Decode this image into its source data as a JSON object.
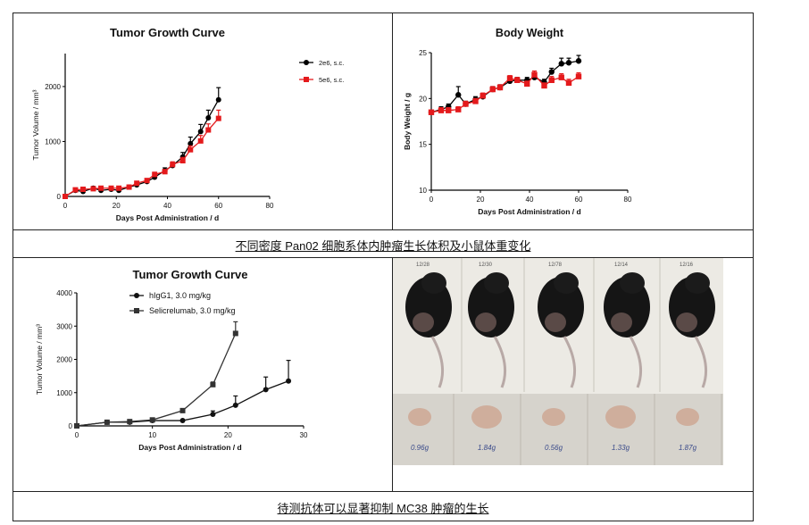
{
  "captions": {
    "top": "不同密度 Pan02 细胞系体内肿瘤生长体积及小鼠体重变化",
    "bottom": "待测抗体可以显著抑制 MC38 肿瘤的生长"
  },
  "chart_data": [
    {
      "type": "line",
      "title": "Tumor Growth Curve",
      "xlabel": "Days Post Administration / d",
      "ylabel": "Tumor Volume / mm³",
      "xlim": [
        0,
        80
      ],
      "ylim": [
        0,
        2600
      ],
      "xticks": [
        0,
        20,
        40,
        60,
        80
      ],
      "yticks": [
        0,
        1000,
        2000
      ],
      "legend": "top-right",
      "series": [
        {
          "name": "2e6, s.c.",
          "color": "#000000",
          "marker": "circle",
          "x": [
            0,
            4,
            7,
            11,
            14,
            18,
            21,
            25,
            28,
            32,
            35,
            39,
            42,
            46,
            49,
            53,
            56,
            60
          ],
          "y": [
            0,
            110,
            90,
            150,
            110,
            130,
            110,
            170,
            210,
            270,
            350,
            470,
            560,
            720,
            960,
            1180,
            1430,
            1760
          ],
          "err": [
            0,
            20,
            20,
            30,
            20,
            20,
            30,
            30,
            30,
            40,
            40,
            50,
            60,
            80,
            120,
            130,
            140,
            220
          ]
        },
        {
          "name": "5e6, s.c.",
          "color": "#e41a1c",
          "marker": "square",
          "x": [
            0,
            4,
            7,
            11,
            14,
            18,
            21,
            25,
            28,
            32,
            35,
            39,
            42,
            46,
            49,
            53,
            56,
            60
          ],
          "y": [
            0,
            120,
            130,
            140,
            150,
            150,
            150,
            170,
            240,
            290,
            400,
            450,
            580,
            650,
            850,
            1010,
            1210,
            1420
          ],
          "err": [
            0,
            20,
            20,
            20,
            20,
            20,
            20,
            30,
            30,
            30,
            40,
            40,
            50,
            60,
            70,
            100,
            110,
            150
          ]
        }
      ]
    },
    {
      "type": "line",
      "title": "Body Weight",
      "xlabel": "Days Post Administration / d",
      "ylabel": "Body Weight / g",
      "xlim": [
        0,
        80
      ],
      "ylim": [
        10,
        25
      ],
      "xticks": [
        0,
        20,
        40,
        60,
        80
      ],
      "yticks": [
        10,
        15,
        20,
        25
      ],
      "series": [
        {
          "color": "#000000",
          "marker": "circle",
          "x": [
            0,
            4,
            7,
            11,
            14,
            18,
            21,
            25,
            28,
            32,
            35,
            39,
            42,
            46,
            49,
            53,
            56,
            60
          ],
          "y": [
            18.5,
            18.8,
            19.1,
            20.4,
            19.4,
            19.9,
            20.2,
            21.0,
            21.2,
            21.9,
            22.0,
            22.0,
            22.3,
            21.8,
            22.9,
            23.8,
            23.9,
            24.1
          ],
          "err": [
            0.2,
            0.3,
            0.3,
            0.9,
            0.3,
            0.3,
            0.3,
            0.3,
            0.3,
            0.3,
            0.3,
            0.3,
            0.3,
            0.3,
            0.4,
            0.6,
            0.5,
            0.6
          ]
        },
        {
          "color": "#e41a1c",
          "marker": "square",
          "x": [
            0,
            4,
            7,
            11,
            14,
            18,
            21,
            25,
            28,
            32,
            35,
            39,
            42,
            46,
            49,
            53,
            56,
            60
          ],
          "y": [
            18.5,
            18.7,
            18.7,
            18.8,
            19.4,
            19.7,
            20.3,
            21.0,
            21.2,
            22.2,
            22.0,
            21.6,
            22.6,
            21.4,
            22.0,
            22.3,
            21.7,
            22.4
          ],
          "err": [
            0.2,
            0.3,
            0.3,
            0.3,
            0.3,
            0.3,
            0.3,
            0.3,
            0.3,
            0.3,
            0.3,
            0.3,
            0.4,
            0.3,
            0.4,
            0.4,
            0.4,
            0.4
          ]
        }
      ]
    },
    {
      "type": "line",
      "title": "Tumor Growth Curve",
      "xlabel": "Days Post Administration / d",
      "ylabel": "Tumor Volume / mm³",
      "xlim": [
        0,
        30
      ],
      "ylim": [
        0,
        4000
      ],
      "xticks": [
        0,
        10,
        20,
        30
      ],
      "yticks": [
        0,
        1000,
        2000,
        3000,
        4000
      ],
      "legend": "top-left",
      "series": [
        {
          "name": "hIgG1, 3.0 mg/kg",
          "color": "#111111",
          "marker": "circle",
          "x": [
            0,
            4,
            7,
            10,
            14,
            18,
            21,
            25,
            28
          ],
          "y": [
            0,
            110,
            110,
            160,
            160,
            350,
            620,
            1090,
            1350
          ],
          "err": [
            0,
            20,
            20,
            30,
            30,
            100,
            280,
            380,
            620
          ]
        },
        {
          "name": "Selicrelumab, 3.0 mg/kg",
          "color": "#333333",
          "marker": "square",
          "x": [
            0,
            4,
            7,
            10,
            14,
            18,
            21
          ],
          "y": [
            0,
            110,
            130,
            180,
            460,
            1240,
            2780
          ],
          "err": [
            0,
            20,
            20,
            30,
            50,
            80,
            350
          ]
        }
      ]
    }
  ],
  "photo": {
    "mouse_tags": [
      "12/28",
      "12/30",
      "12/78",
      "12/14",
      "12/16"
    ],
    "tumor_weights": [
      "0.96g",
      "1.84g",
      "0.56g",
      "1.33g",
      "1.87g"
    ]
  },
  "colors": {
    "border": "#222222",
    "black_series": "#000000",
    "red_series": "#e41a1c"
  }
}
